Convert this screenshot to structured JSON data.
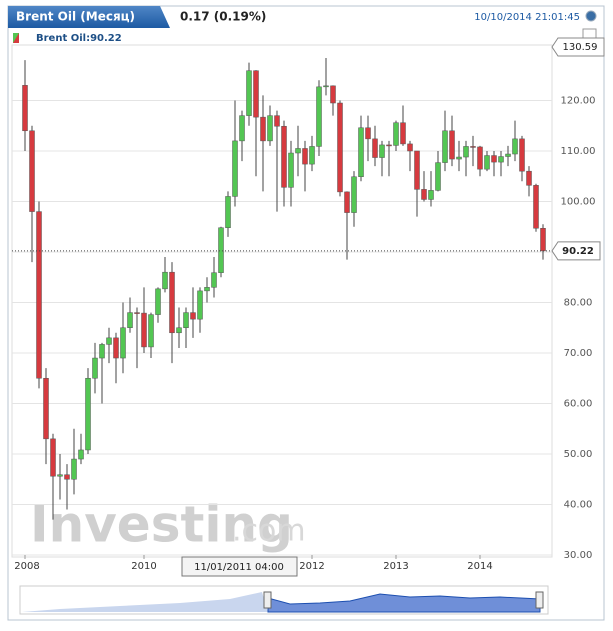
{
  "header": {
    "tab": "Brent Oil (Месяц)",
    "change": "0.17 (0.19%)",
    "timestamp": "10/10/2014 21:01:45"
  },
  "chart_data": {
    "type": "candlestick",
    "legend_label": "Brent Oil:90.22",
    "up_color": "#53c653",
    "down_color": "#d63a3f",
    "open": [
      123,
      114,
      98,
      65,
      53,
      45.6,
      45.9,
      45,
      49,
      50.8,
      65,
      69,
      71.7,
      73,
      69,
      75,
      78,
      77.9,
      71.2,
      77.6,
      82.7,
      86,
      74,
      75,
      78,
      76.7,
      82.3,
      83,
      85.9,
      94.8,
      101,
      112,
      117,
      125.9,
      116.7,
      112,
      117,
      114.9,
      102.8,
      109.6,
      110.5,
      107.4,
      110.9,
      122.7,
      122.9,
      119.5,
      101.9,
      97.8,
      104.9,
      114.6,
      112.4,
      108.7,
      111.2,
      111.1,
      115.6,
      111.4,
      110,
      102.4,
      100.4,
      102.2,
      107.7,
      114,
      108.4,
      108.8,
      110.9,
      110.8,
      106.4,
      109.1,
      107.8,
      108.9,
      109.4,
      112.4,
      106,
      103.2,
      94.7
    ],
    "high": [
      128,
      115,
      100,
      67,
      54,
      50,
      48,
      55,
      54,
      67,
      72,
      72,
      75,
      74,
      80,
      81,
      79,
      83,
      78,
      83,
      89,
      88,
      79,
      79,
      83,
      83,
      85,
      89,
      95,
      102,
      120,
      118,
      127.5,
      126,
      121,
      119,
      118,
      116,
      112,
      115,
      112,
      113,
      124,
      128.4,
      123,
      120,
      102,
      106,
      117,
      117,
      115,
      112,
      112,
      116,
      119,
      112,
      110,
      106,
      106,
      110,
      118,
      117,
      112,
      112,
      113,
      111,
      110,
      110,
      110,
      111,
      116,
      113,
      107,
      103.5,
      95.5
    ],
    "low": [
      110,
      88,
      63,
      48,
      37,
      41,
      39,
      42,
      48,
      50,
      62,
      60,
      68,
      64,
      66,
      74,
      67,
      70,
      69,
      76,
      82,
      68,
      71,
      71,
      73,
      74,
      80,
      81,
      85,
      93,
      99,
      108,
      115,
      105,
      102,
      111,
      98,
      99,
      99,
      105,
      102,
      106,
      109,
      121,
      117,
      101,
      88.5,
      95,
      104,
      108,
      107,
      105,
      105,
      110,
      111,
      106,
      97,
      100,
      99,
      102,
      106,
      107,
      106,
      105,
      107,
      105,
      106,
      105,
      105,
      107,
      108,
      104,
      101,
      94,
      88.5
    ],
    "close": [
      114,
      98,
      65,
      53,
      45.6,
      45.9,
      45,
      49,
      50.8,
      65,
      69,
      71.7,
      73,
      69,
      75,
      78,
      77.9,
      71.2,
      77.6,
      82.7,
      86,
      74,
      75,
      78,
      76.7,
      82.3,
      83,
      85.9,
      94.8,
      101,
      112,
      117,
      125.9,
      116.7,
      112,
      117,
      114.9,
      102.8,
      109.6,
      110.5,
      107.4,
      110.9,
      122.7,
      122.9,
      119.5,
      101.9,
      97.8,
      104.9,
      114.6,
      112.4,
      108.7,
      111.2,
      111.1,
      115.6,
      111.4,
      110,
      102.4,
      100.4,
      102.2,
      107.7,
      114,
      108.4,
      108.8,
      110.9,
      110.8,
      106.4,
      109.1,
      107.8,
      108.9,
      109.4,
      112.4,
      106,
      103.2,
      94.7,
      90.22
    ],
    "current_value": 90.22,
    "ylim": [
      30,
      130.59
    ],
    "yticks": [
      {
        "value": 30,
        "label": "30.00"
      },
      {
        "value": 40,
        "label": "40.00"
      },
      {
        "value": 50,
        "label": "50.00"
      },
      {
        "value": 60,
        "label": "60.00"
      },
      {
        "value": 70,
        "label": "70.00"
      },
      {
        "value": 80,
        "label": "80.00"
      },
      {
        "value": 90,
        "label": "90.00"
      },
      {
        "value": 100,
        "label": "100.00"
      },
      {
        "value": 110,
        "label": "110.00"
      },
      {
        "value": 120,
        "label": "120.00"
      }
    ],
    "xticks": [
      {
        "value": 0,
        "label": "2008"
      },
      {
        "value": 17,
        "label": "2010"
      },
      {
        "value": 41,
        "label": "2012"
      },
      {
        "value": 53,
        "label": "2013"
      },
      {
        "value": 65,
        "label": "2014"
      }
    ],
    "crosshair_label": "11/01/2011 04:00",
    "grid": true
  },
  "watermark": {
    "brand": "Investing",
    "suffix": ".com"
  }
}
